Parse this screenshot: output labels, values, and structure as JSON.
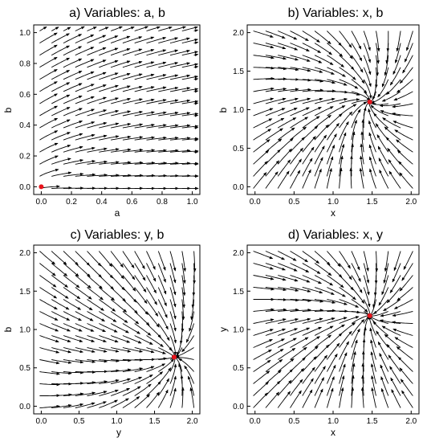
{
  "chart_data": [
    {
      "type": "streamplot",
      "id": "a",
      "title": "a) Variables: a, b",
      "xlabel": "a",
      "ylabel": "b",
      "xlim": [
        -0.05,
        1.05
      ],
      "ylim": [
        -0.05,
        1.05
      ],
      "xticks": [
        0.0,
        0.2,
        0.4,
        0.6,
        0.8,
        1.0
      ],
      "yticks": [
        0.0,
        0.2,
        0.4,
        0.6,
        0.8,
        1.0
      ],
      "xtick_labels": [
        "0.0",
        "0.2",
        "0.4",
        "0.6",
        "0.8",
        "1.0"
      ],
      "ytick_labels": [
        "0.0",
        "0.2",
        "0.4",
        "0.6",
        "0.8",
        "1.0"
      ],
      "fixed_point": {
        "x": 0.0,
        "y": 0.0
      },
      "fixed_point_color": "#e8141c"
    },
    {
      "type": "streamplot",
      "id": "b",
      "title": "b) Variables: x, b",
      "xlabel": "x",
      "ylabel": "b",
      "xlim": [
        -0.1,
        2.1
      ],
      "ylim": [
        -0.1,
        2.1
      ],
      "xticks": [
        0.0,
        0.5,
        1.0,
        1.5,
        2.0
      ],
      "yticks": [
        0.0,
        0.5,
        1.0,
        1.5,
        2.0
      ],
      "xtick_labels": [
        "0.0",
        "0.5",
        "1.0",
        "1.5",
        "2.0"
      ],
      "ytick_labels": [
        "0.0",
        "0.5",
        "1.0",
        "1.5",
        "2.0"
      ],
      "fixed_point": {
        "x": 1.47,
        "y": 1.1
      },
      "fixed_point_color": "#e8141c"
    },
    {
      "type": "streamplot",
      "id": "c",
      "title": "c) Variables: y, b",
      "xlabel": "y",
      "ylabel": "b",
      "xlim": [
        -0.1,
        2.1
      ],
      "ylim": [
        -0.1,
        2.1
      ],
      "xticks": [
        0.0,
        0.5,
        1.0,
        1.5,
        2.0
      ],
      "yticks": [
        0.0,
        0.5,
        1.0,
        1.5,
        2.0
      ],
      "xtick_labels": [
        "0.0",
        "0.5",
        "1.0",
        "1.5",
        "2.0"
      ],
      "ytick_labels": [
        "0.0",
        "0.5",
        "1.0",
        "1.5",
        "2.0"
      ],
      "fixed_point": {
        "x": 1.76,
        "y": 0.64
      },
      "fixed_point_color": "#e8141c"
    },
    {
      "type": "streamplot",
      "id": "d",
      "title": "d) Variables: x, y",
      "xlabel": "x",
      "ylabel": "y",
      "xlim": [
        -0.1,
        2.1
      ],
      "ylim": [
        -0.1,
        2.1
      ],
      "xticks": [
        0.0,
        0.5,
        1.0,
        1.5,
        2.0
      ],
      "yticks": [
        0.0,
        0.5,
        1.0,
        1.5,
        2.0
      ],
      "xtick_labels": [
        "0.0",
        "0.5",
        "1.0",
        "1.5",
        "2.0"
      ],
      "ytick_labels": [
        "0.0",
        "0.5",
        "1.0",
        "1.5",
        "2.0"
      ],
      "fixed_point": {
        "x": 1.47,
        "y": 1.18
      },
      "fixed_point_color": "#e8141c"
    }
  ]
}
